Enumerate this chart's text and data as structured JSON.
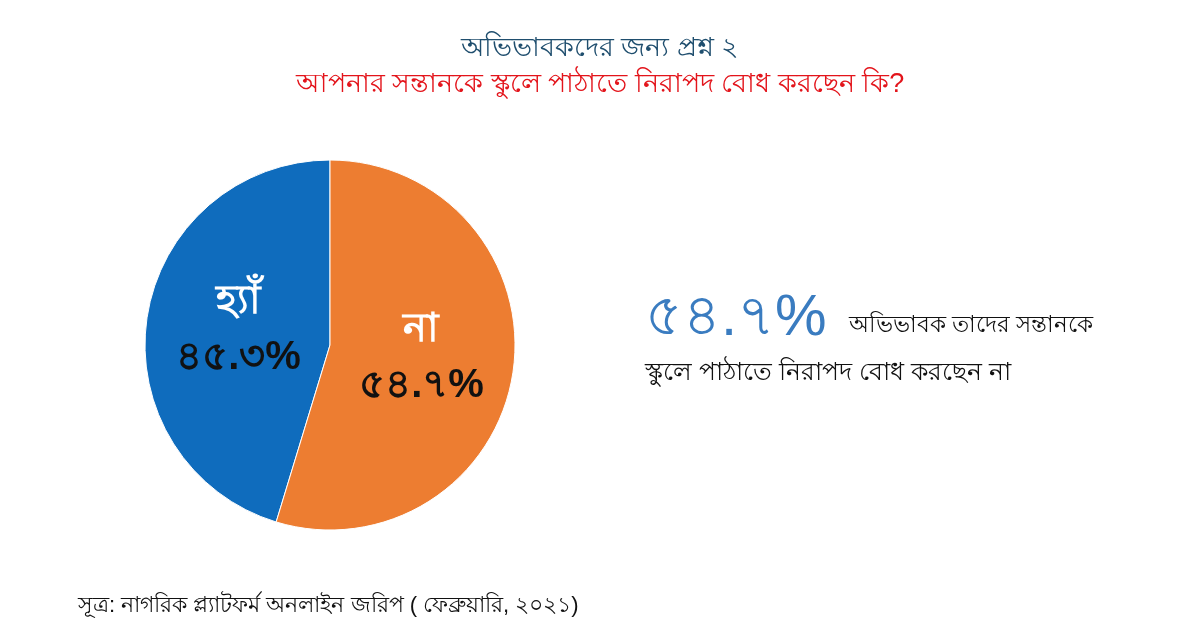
{
  "chart_data": {
    "type": "pie",
    "title": "অভিভাবকদের জন্য প্রশ্ন ২",
    "subtitle": "আপনার সন্তানকে স্কুলে পাঠাতে নিরাপদ বোধ করছেন কি?",
    "categories": [
      "হ্যাঁ",
      "না"
    ],
    "values": [
      45.3,
      54.7
    ],
    "colors": [
      "#0f6cbd",
      "#ed7d31"
    ],
    "value_labels": [
      "৪৫.৩%",
      "৫৪.৭%"
    ],
    "annotations": [
      "৫৪.৭%",
      "অভিভাবক তাদের সন্তানকে",
      "স্কুলে পাঠাতে নিরাপদ বোধ করছেন না",
      "সূত্র: নাগরিক প্ল্যাটফর্ম অনলাইন জরিপ ( ফেব্রুয়ারি, ২০২১)"
    ]
  }
}
